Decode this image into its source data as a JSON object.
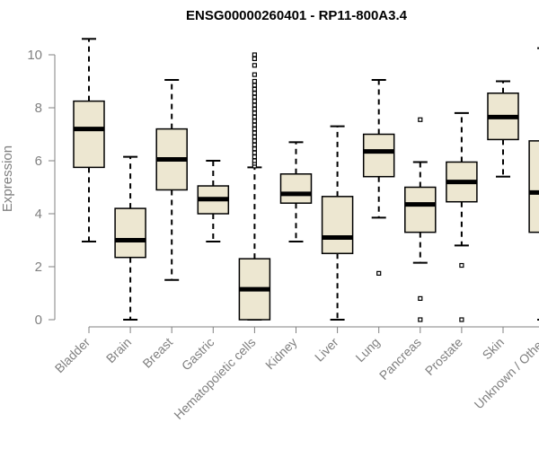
{
  "chart_data": {
    "type": "boxplot",
    "title": "ENSG00000260401 - RP11-800A3.4",
    "xlabel": "",
    "ylabel": "Expression",
    "ylim": [
      0,
      10.6
    ],
    "yticks": [
      0,
      2,
      4,
      6,
      8,
      10
    ],
    "grid": false,
    "colors": {
      "box_fill": "#ede7d1",
      "stroke": "#000000",
      "axis_text": "#808080"
    },
    "categories": [
      "Bladder",
      "Brain",
      "Breast",
      "Gastric",
      "Hematopoietic cells",
      "Kidney",
      "Liver",
      "Lung",
      "Pancreas",
      "Prostate",
      "Skin",
      "Unknown / Other"
    ],
    "boxes": [
      {
        "label": "Bladder",
        "min": 2.95,
        "q1": 5.75,
        "median": 7.2,
        "q3": 8.25,
        "max": 10.6,
        "outliers": []
      },
      {
        "label": "Brain",
        "min": 0.0,
        "q1": 2.35,
        "median": 3.0,
        "q3": 4.2,
        "max": 6.15,
        "outliers": []
      },
      {
        "label": "Breast",
        "min": 1.5,
        "q1": 4.9,
        "median": 6.05,
        "q3": 7.2,
        "max": 9.05,
        "outliers": []
      },
      {
        "label": "Gastric",
        "min": 2.95,
        "q1": 4.0,
        "median": 4.55,
        "q3": 5.05,
        "max": 6.0,
        "outliers": []
      },
      {
        "label": "Hematopoietic cells",
        "min": 0.0,
        "q1": 0.0,
        "median": 1.15,
        "q3": 2.3,
        "max": 5.75,
        "outliers": [
          5.8,
          5.9,
          6.0,
          6.15,
          6.3,
          6.45,
          6.6,
          6.75,
          6.9,
          7.05,
          7.2,
          7.35,
          7.5,
          7.65,
          7.8,
          7.95,
          8.1,
          8.25,
          8.4,
          8.55,
          8.7,
          8.85,
          9.0,
          9.25,
          9.6,
          9.85,
          10.0
        ]
      },
      {
        "label": "Kidney",
        "min": 2.95,
        "q1": 4.4,
        "median": 4.75,
        "q3": 5.5,
        "max": 6.7,
        "outliers": []
      },
      {
        "label": "Liver",
        "min": 0.0,
        "q1": 2.5,
        "median": 3.1,
        "q3": 4.65,
        "max": 7.3,
        "outliers": []
      },
      {
        "label": "Lung",
        "min": 3.85,
        "q1": 5.4,
        "median": 6.35,
        "q3": 7.0,
        "max": 9.05,
        "outliers": [
          1.75
        ]
      },
      {
        "label": "Pancreas",
        "min": 2.15,
        "q1": 3.3,
        "median": 4.35,
        "q3": 5.0,
        "max": 5.95,
        "outliers": [
          0.0,
          0.8,
          7.55
        ]
      },
      {
        "label": "Prostate",
        "min": 2.8,
        "q1": 4.45,
        "median": 5.2,
        "q3": 5.95,
        "max": 7.8,
        "outliers": [
          0.0,
          2.05
        ]
      },
      {
        "label": "Skin",
        "min": 5.4,
        "q1": 6.8,
        "median": 7.65,
        "q3": 8.55,
        "max": 9.0,
        "outliers": []
      },
      {
        "label": "Unknown / Other",
        "min": 0.0,
        "q1": 3.3,
        "median": 4.8,
        "q3": 6.75,
        "max": 10.25,
        "outliers": []
      }
    ]
  }
}
